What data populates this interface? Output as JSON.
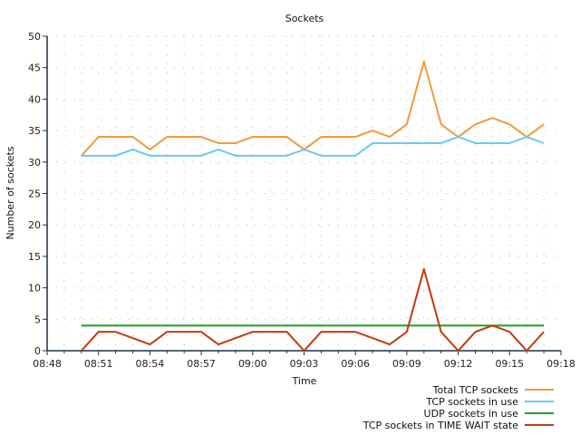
{
  "chart_data": {
    "type": "line",
    "title": "Sockets",
    "xlabel": "Time",
    "ylabel": "Number of sockets",
    "ylim": [
      0,
      50
    ],
    "yticks": [
      "0",
      "5",
      "10",
      "15",
      "20",
      "25",
      "30",
      "35",
      "40",
      "45",
      "50"
    ],
    "xlim": [
      "08:48",
      "09:18"
    ],
    "xticks": [
      "08:48",
      "08:51",
      "08:54",
      "08:57",
      "09:00",
      "09:03",
      "09:06",
      "09:09",
      "09:12",
      "09:15",
      "09:18"
    ],
    "grid": true,
    "legend_position": "bottom-right",
    "x": [
      "08:50",
      "08:51",
      "08:52",
      "08:53",
      "08:54",
      "08:55",
      "08:56",
      "08:57",
      "08:58",
      "08:59",
      "09:00",
      "09:01",
      "09:02",
      "09:03",
      "09:04",
      "09:05",
      "09:06",
      "09:07",
      "09:08",
      "09:09",
      "09:10",
      "09:11",
      "09:12",
      "09:13",
      "09:14",
      "09:15",
      "09:16",
      "09:17"
    ],
    "series": [
      {
        "name": "Total TCP sockets",
        "color": "#f39b3a",
        "values": [
          31,
          34,
          34,
          34,
          32,
          34,
          34,
          34,
          33,
          33,
          34,
          34,
          34,
          32,
          34,
          34,
          34,
          35,
          34,
          36,
          46,
          36,
          34,
          36,
          37,
          36,
          34,
          36
        ]
      },
      {
        "name": "TCP sockets in use",
        "color": "#66ccf2",
        "values": [
          31,
          31,
          31,
          32,
          31,
          31,
          31,
          31,
          32,
          31,
          31,
          31,
          31,
          32,
          31,
          31,
          31,
          33,
          33,
          33,
          33,
          33,
          34,
          33,
          33,
          33,
          34,
          33
        ]
      },
      {
        "name": "UDP sockets in use",
        "color": "#1aa327",
        "values": [
          4,
          4,
          4,
          4,
          4,
          4,
          4,
          4,
          4,
          4,
          4,
          4,
          4,
          4,
          4,
          4,
          4,
          4,
          4,
          4,
          4,
          4,
          4,
          4,
          4,
          4,
          4,
          4
        ]
      },
      {
        "name": "TCP sockets in TIME WAIT state",
        "color": "#c63a0c",
        "values": [
          0,
          3,
          3,
          2,
          1,
          3,
          3,
          3,
          1,
          2,
          3,
          3,
          3,
          0,
          3,
          3,
          3,
          2,
          1,
          3,
          13,
          3,
          0,
          3,
          4,
          3,
          0,
          3
        ]
      }
    ]
  }
}
